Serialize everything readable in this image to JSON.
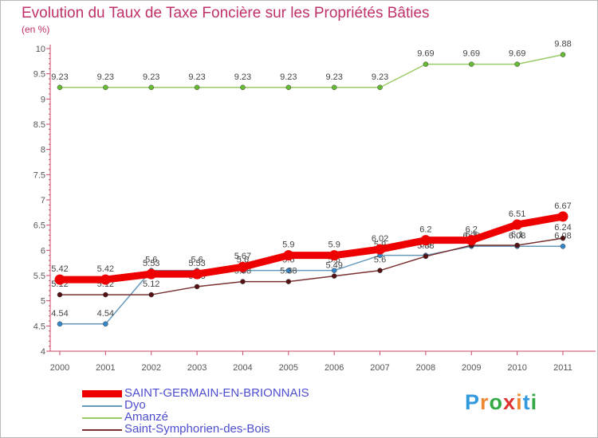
{
  "chart_data": {
    "type": "line",
    "title": "Evolution du Taux de Taxe Foncière sur les Propriétés Bâties",
    "ylabel": "(en %)",
    "xlabel": "",
    "x": [
      "2000",
      "2001",
      "2002",
      "2003",
      "2004",
      "2005",
      "2006",
      "2007",
      "2008",
      "2009",
      "2010",
      "2011"
    ],
    "ylim": [
      4,
      10
    ],
    "yticks": [
      "4",
      "4.5",
      "5",
      "5.5",
      "6",
      "6.5",
      "7",
      "7.5",
      "8",
      "8.5",
      "9",
      "9.5",
      "10"
    ],
    "series": [
      {
        "name": "Amanzé",
        "color": "#99cc66",
        "marker": "#66bb33",
        "width": 1.5,
        "values": [
          9.23,
          9.23,
          9.23,
          9.23,
          9.23,
          9.23,
          9.23,
          9.23,
          9.69,
          9.69,
          9.69,
          9.88
        ],
        "labels": [
          "9.23",
          "9.23",
          "9.23",
          "9.23",
          "9.23",
          "9.23",
          "9.23",
          "9.23",
          "9.69",
          "9.69",
          "9.69",
          "9.88"
        ]
      },
      {
        "name": "Dyo",
        "color": "#6699bb",
        "marker": "#3388cc",
        "width": 1.5,
        "values": [
          4.54,
          4.54,
          5.6,
          5.6,
          5.6,
          5.6,
          5.6,
          5.9,
          5.9,
          6.08,
          6.08,
          6.08
        ],
        "labels": [
          "4.54",
          "4.54",
          "5.6",
          "5.6",
          "5.6",
          "5.6",
          "5.6",
          "5.9",
          "5.9",
          "6.08",
          "6.08",
          "6.08"
        ]
      },
      {
        "name": "Saint-Symphorien-des-Bois",
        "color": "#7a3030",
        "marker": "#551111",
        "width": 1.5,
        "values": [
          5.12,
          5.12,
          5.12,
          5.28,
          5.38,
          5.38,
          5.49,
          5.6,
          5.88,
          6.1,
          6.1,
          6.24
        ],
        "labels": [
          "5.12",
          "5.12",
          "5.12",
          "5.28",
          "5.38",
          "5.38",
          "5.49",
          "5.6",
          "5.88",
          "6.1",
          "6.1",
          "6.24"
        ]
      },
      {
        "name": "SAINT-GERMAIN-EN-BRIONNAIS",
        "color": "#ee0000",
        "marker": "#ee0000",
        "width": 9,
        "values": [
          5.42,
          5.42,
          5.53,
          5.53,
          5.67,
          5.9,
          5.9,
          6.02,
          6.2,
          6.2,
          6.51,
          6.67
        ],
        "labels": [
          "5.42",
          "5.42",
          "5.53",
          "5.53",
          "5.67",
          "5.9",
          "5.9",
          "6.02",
          "6.2",
          "6.2",
          "6.51",
          "6.67"
        ]
      }
    ],
    "legend": [
      {
        "name": "SAINT-GERMAIN-EN-BRIONNAIS",
        "color": "#ee0000"
      },
      {
        "name": "Dyo",
        "color": "#6699bb"
      },
      {
        "name": "Amanzé",
        "color": "#99cc66"
      },
      {
        "name": "Saint-Symphorien-des-Bois",
        "color": "#7a3030"
      }
    ],
    "legend_position": "bottom-left",
    "grid": false
  },
  "logo": {
    "letters": [
      "P",
      "r",
      "o",
      "x",
      "i",
      "t",
      "i"
    ],
    "colors": [
      "#3399dd",
      "#ee8833",
      "#33aa44",
      "#dd3333",
      "#ee8833",
      "#3399dd",
      "#33aa44"
    ]
  }
}
